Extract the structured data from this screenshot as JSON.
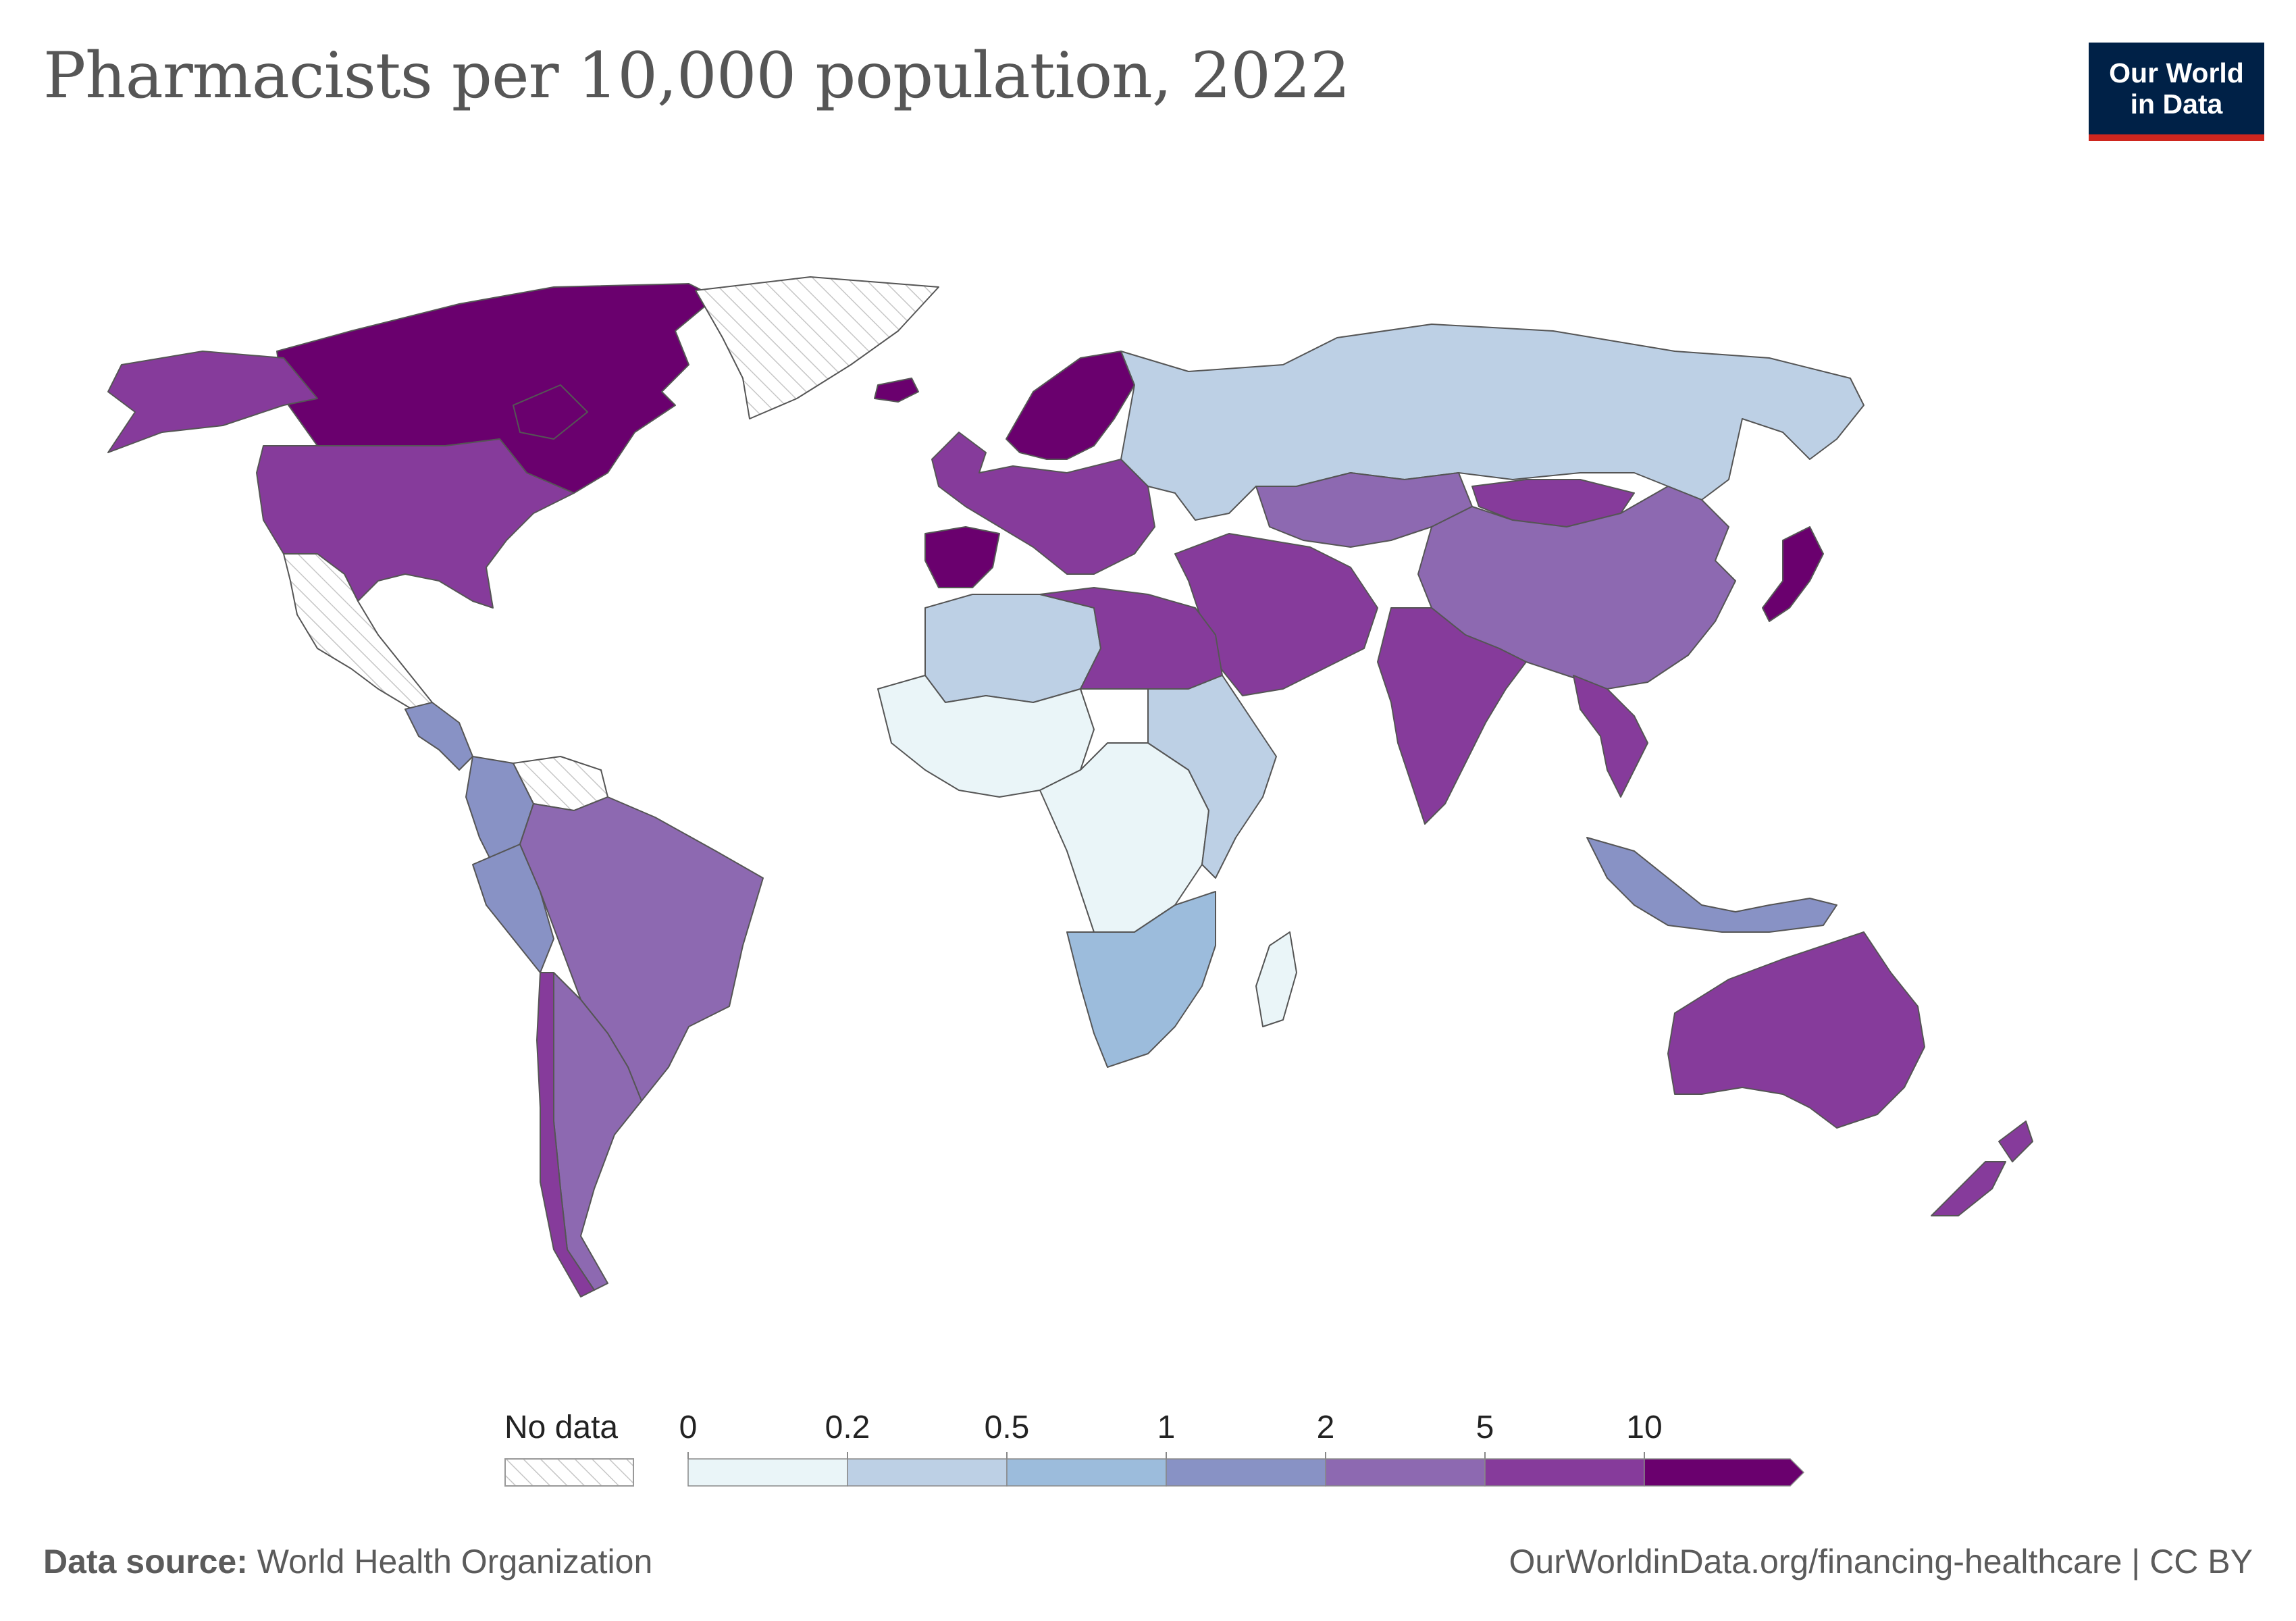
{
  "title": "Pharmacists per 10,000 population, 2022",
  "logo": {
    "line1": "Our World",
    "line2": "in Data"
  },
  "legend": {
    "no_data_label": "No data",
    "bins": [
      {
        "label": "0",
        "color": "#eaf5f8"
      },
      {
        "label": "0.2",
        "color": "#bdd0e5"
      },
      {
        "label": "0.5",
        "color": "#9cbcdc"
      },
      {
        "label": "1",
        "color": "#8892c5"
      },
      {
        "label": "2",
        "color": "#8d69b1"
      },
      {
        "label": "5",
        "color": "#863b9b"
      },
      {
        "label": "10",
        "color": "#6a006e"
      }
    ]
  },
  "footer": {
    "source_label": "Data source:",
    "source": "World Health Organization",
    "url": "OurWorldinData.org/financing-healthcare | CC BY"
  },
  "map": {
    "regions": [
      {
        "name": "canada",
        "color": "#6a006e"
      },
      {
        "name": "united-states",
        "color": "#863b9b"
      },
      {
        "name": "alaska",
        "color": "#863b9b"
      },
      {
        "name": "greenland",
        "color": "nodata"
      },
      {
        "name": "mexico",
        "color": "nodata"
      },
      {
        "name": "central-america",
        "color": "#8892c5"
      },
      {
        "name": "venezuela",
        "color": "nodata"
      },
      {
        "name": "colombia",
        "color": "#8892c5"
      },
      {
        "name": "peru",
        "color": "#8892c5"
      },
      {
        "name": "brazil",
        "color": "#8d69b1"
      },
      {
        "name": "argentina",
        "color": "#8d69b1"
      },
      {
        "name": "chile",
        "color": "#863b9b"
      },
      {
        "name": "iceland",
        "color": "#6a006e"
      },
      {
        "name": "scandinavia",
        "color": "#6a006e"
      },
      {
        "name": "western-europe",
        "color": "#863b9b"
      },
      {
        "name": "iberia",
        "color": "#6a006e"
      },
      {
        "name": "russia",
        "color": "#bdd0e5"
      },
      {
        "name": "kazakhstan",
        "color": "#8d69b1"
      },
      {
        "name": "mongolia",
        "color": "#863b9b"
      },
      {
        "name": "china",
        "color": "#8d69b1"
      },
      {
        "name": "japan",
        "color": "#6a006e"
      },
      {
        "name": "india",
        "color": "#863b9b"
      },
      {
        "name": "middle-east",
        "color": "#863b9b"
      },
      {
        "name": "southeast-asia",
        "color": "#863b9b"
      },
      {
        "name": "indonesia",
        "color": "#8892c5"
      },
      {
        "name": "north-africa",
        "color": "#bdd0e5"
      },
      {
        "name": "libya-egypt",
        "color": "#863b9b"
      },
      {
        "name": "west-africa",
        "color": "#eaf5f8"
      },
      {
        "name": "central-africa",
        "color": "#eaf5f8"
      },
      {
        "name": "east-africa",
        "color": "#bdd0e5"
      },
      {
        "name": "southern-africa",
        "color": "#9cbcdc"
      },
      {
        "name": "madagascar",
        "color": "#eaf5f8"
      },
      {
        "name": "australia",
        "color": "#863b9b"
      },
      {
        "name": "new-zealand",
        "color": "#863b9b"
      }
    ]
  }
}
